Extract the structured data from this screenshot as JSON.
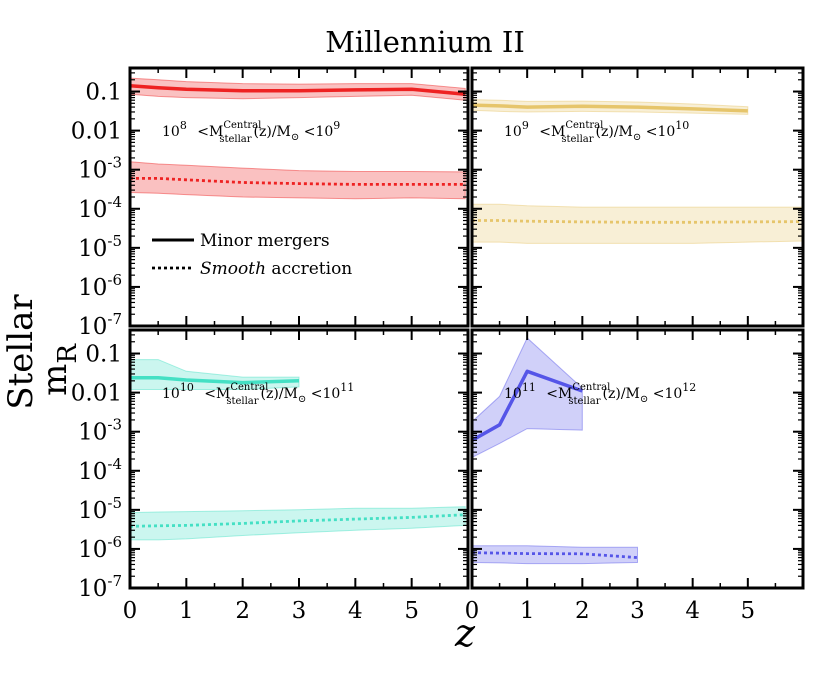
{
  "chart_data": {
    "type": "line",
    "title": "Millennium II",
    "xlabel": "z",
    "ylabel_main": "m",
    "ylabel_sub": "R",
    "ylabel_sup": "Stellar",
    "yscale": "log",
    "xlim": [
      0,
      6
    ],
    "ylim": [
      1e-07,
      0.4
    ],
    "x_ticks": [
      0,
      1,
      2,
      3,
      4,
      5
    ],
    "x_tick_labels": [
      "0",
      "1",
      "2",
      "3",
      "4",
      "5"
    ],
    "y_ticks": [
      0.1,
      0.01,
      0.001,
      0.0001,
      1e-05,
      1e-06,
      1e-07
    ],
    "y_tick_labels": [
      {
        "base": "0.1",
        "exp": ""
      },
      {
        "base": "0.01",
        "exp": ""
      },
      {
        "base": "10",
        "exp": "-3"
      },
      {
        "base": "10",
        "exp": "-4"
      },
      {
        "base": "10",
        "exp": "-5"
      },
      {
        "base": "10",
        "exp": "-6"
      },
      {
        "base": "10",
        "exp": "-7"
      }
    ],
    "legend": {
      "location": "upper-left panel, left",
      "entries": [
        {
          "style": "solid",
          "label_parts": [
            "Minor  mergers"
          ]
        },
        {
          "style": "dotted",
          "label_italic": "Smooth",
          "label_rest": " accretion"
        }
      ]
    },
    "panels": [
      {
        "position": "top-left",
        "color": "#ee2222",
        "annotation": {
          "lo_base": "10",
          "lo_exp": "8",
          "mid": " <M",
          "sup": "Central",
          "sub": "stellar",
          "after": "(z)/M",
          "sun": "⊙",
          "lt": " <",
          "hi_base": "10",
          "hi_exp": "9"
        },
        "series": [
          {
            "name": "Minor mergers",
            "style": "solid",
            "x": [
              0,
              0.5,
              1,
              2,
              3,
              4,
              5,
              5.95
            ],
            "y": [
              0.14,
              0.125,
              0.115,
              0.105,
              0.105,
              0.11,
              0.115,
              0.085
            ],
            "band_lo": [
              0.085,
              0.075,
              0.07,
              0.065,
              0.07,
              0.075,
              0.08,
              0.06
            ],
            "band_hi": [
              0.22,
              0.2,
              0.18,
              0.16,
              0.155,
              0.16,
              0.16,
              0.12
            ]
          },
          {
            "name": "Smooth accretion",
            "style": "dotted",
            "x": [
              0,
              0.5,
              1,
              2,
              3,
              4,
              5,
              5.95
            ],
            "y": [
              0.0006,
              0.0006,
              0.00055,
              0.00047,
              0.00044,
              0.00042,
              0.00042,
              0.00042
            ],
            "band_lo": [
              0.00026,
              0.00025,
              0.00023,
              0.0002,
              0.00019,
              0.00018,
              0.00019,
              0.00018
            ],
            "band_hi": [
              0.0016,
              0.0014,
              0.0013,
              0.0011,
              0.00095,
              0.0009,
              0.0009,
              0.00088
            ]
          }
        ]
      },
      {
        "position": "top-right",
        "color": "#e6c56b",
        "annotation": {
          "lo_base": "10",
          "lo_exp": "9",
          "mid": " <M",
          "sup": "Central",
          "sub": "stellar",
          "after": "(z)/M",
          "sun": "⊙",
          "lt": " <",
          "hi_base": "10",
          "hi_exp": "10"
        },
        "series": [
          {
            "name": "Minor mergers",
            "style": "solid",
            "x": [
              0,
              0.5,
              1,
              2,
              3,
              4,
              5
            ],
            "y": [
              0.045,
              0.043,
              0.04,
              0.042,
              0.04,
              0.036,
              0.032
            ],
            "band_lo": [
              0.033,
              0.031,
              0.03,
              0.031,
              0.03,
              0.028,
              0.026
            ],
            "band_hi": [
              0.062,
              0.06,
              0.056,
              0.057,
              0.054,
              0.048,
              0.041
            ]
          },
          {
            "name": "Smooth accretion",
            "style": "dotted",
            "x": [
              0,
              0.5,
              1,
              2,
              3,
              4,
              5,
              6
            ],
            "y": [
              5e-05,
              5e-05,
              4.8e-05,
              4.6e-05,
              4.5e-05,
              4.5e-05,
              4.6e-05,
              4.7e-05
            ],
            "band_lo": [
              1.4e-05,
              1.4e-05,
              1.3e-05,
              1.3e-05,
              1.3e-05,
              1.3e-05,
              1.4e-05,
              1.5e-05
            ],
            "band_hi": [
              0.00013,
              0.00013,
              0.00012,
              0.00011,
              0.00011,
              0.00011,
              0.00011,
              0.00011
            ]
          }
        ]
      },
      {
        "position": "bottom-left",
        "color": "#44e0c4",
        "annotation": {
          "lo_base": "10",
          "lo_exp": "10",
          "mid": " <M",
          "sup": "Central",
          "sub": "stellar",
          "after": "(z)/M",
          "sun": "⊙",
          "lt": " <",
          "hi_base": "10",
          "hi_exp": "11"
        },
        "series": [
          {
            "name": "Minor mergers",
            "style": "solid",
            "x": [
              0,
              0.5,
              1,
              2,
              3
            ],
            "y": [
              0.024,
              0.024,
              0.021,
              0.018,
              0.02
            ],
            "band_lo": [
              0.012,
              0.012,
              0.012,
              0.012,
              0.014
            ],
            "band_hi": [
              0.07,
              0.07,
              0.035,
              0.025,
              0.025
            ]
          },
          {
            "name": "Smooth accretion",
            "style": "dotted",
            "x": [
              0,
              0.5,
              1,
              2,
              3,
              4,
              5,
              5.95
            ],
            "y": [
              3.8e-06,
              3.9e-06,
              4e-06,
              4.5e-06,
              5.2e-06,
              5.8e-06,
              6.4e-06,
              7.5e-06
            ],
            "band_lo": [
              1.7e-06,
              1.7e-06,
              1.8e-06,
              2.2e-06,
              2.6e-06,
              3e-06,
              3.4e-06,
              4e-06
            ],
            "band_hi": [
              8.5e-06,
              8.8e-06,
              9e-06,
              9.5e-06,
              1e-05,
              1.1e-05,
              1.1e-05,
              1.2e-05
            ]
          }
        ]
      },
      {
        "position": "bottom-right",
        "color": "#5555e8",
        "annotation": {
          "lo_base": "10",
          "lo_exp": "11",
          "mid": " <M",
          "sup": "Central",
          "sub": "stellar",
          "after": "(z)/M",
          "sun": "⊙",
          "lt": " <",
          "hi_base": "10",
          "hi_exp": "12"
        },
        "series": [
          {
            "name": "Minor mergers",
            "style": "solid",
            "x": [
              0,
              0.5,
              1,
              2
            ],
            "y": [
              0.0006,
              0.0015,
              0.035,
              0.011
            ],
            "band_lo": [
              0.00022,
              0.0005,
              0.0012,
              0.0011
            ],
            "band_hi": [
              0.0018,
              0.008,
              0.25,
              0.013
            ]
          },
          {
            "name": "Smooth accretion",
            "style": "dotted",
            "x": [
              0,
              0.5,
              1,
              2,
              3
            ],
            "y": [
              8e-07,
              7.8e-07,
              7.6e-07,
              7.5e-07,
              6e-07
            ],
            "band_lo": [
              4.5e-07,
              4.4e-07,
              4.2e-07,
              4.2e-07,
              4.5e-07
            ],
            "band_hi": [
              1.2e-06,
              1.2e-06,
              1.2e-06,
              1.1e-06,
              1.1e-06
            ]
          }
        ]
      }
    ]
  }
}
